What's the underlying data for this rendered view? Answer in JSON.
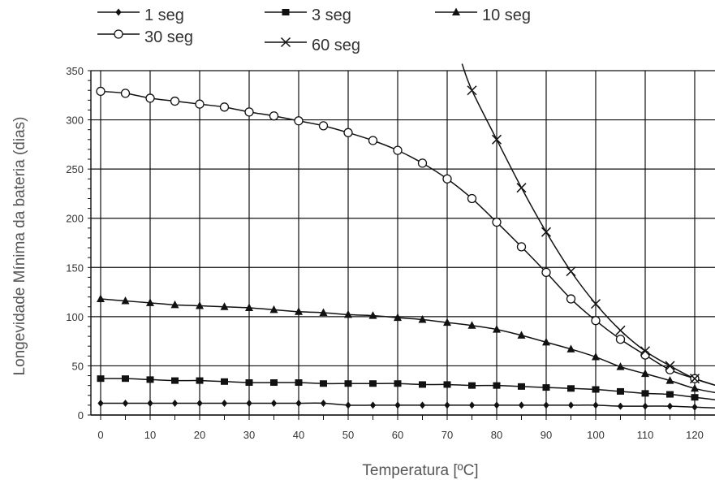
{
  "chart_data": {
    "type": "line",
    "title": "",
    "xlabel": "Temperatura [ºC]",
    "ylabel": "Longevidade Mínima da bateria (dias)",
    "xlim": [
      0,
      125
    ],
    "ylim": [
      0,
      350
    ],
    "x_ticks": [
      0,
      10,
      20,
      30,
      40,
      50,
      60,
      70,
      80,
      90,
      100,
      110,
      120
    ],
    "y_ticks": [
      0,
      50,
      100,
      150,
      200,
      250,
      300,
      350
    ],
    "grid": true,
    "legend_position": "top",
    "series": [
      {
        "name": "1 seg",
        "marker": "diamond",
        "x": [
          0,
          5,
          10,
          15,
          20,
          25,
          30,
          35,
          40,
          45,
          50,
          55,
          60,
          65,
          70,
          75,
          80,
          85,
          90,
          95,
          100,
          105,
          110,
          115,
          120
        ],
        "y": [
          12,
          12,
          12,
          12,
          12,
          12,
          12,
          12,
          12,
          12,
          10,
          10,
          10,
          10,
          10,
          10,
          10,
          10,
          10,
          10,
          10,
          9,
          9,
          9,
          8
        ],
        "line_extends_to": [
          125,
          7
        ]
      },
      {
        "name": "3 seg",
        "marker": "square",
        "x": [
          0,
          5,
          10,
          15,
          20,
          25,
          30,
          35,
          40,
          45,
          50,
          55,
          60,
          65,
          70,
          75,
          80,
          85,
          90,
          95,
          100,
          105,
          110,
          115,
          120
        ],
        "y": [
          37,
          37,
          36,
          35,
          35,
          34,
          33,
          33,
          33,
          32,
          32,
          32,
          32,
          31,
          31,
          30,
          30,
          29,
          28,
          27,
          26,
          24,
          22,
          21,
          18
        ],
        "line_extends_to": [
          125,
          15
        ]
      },
      {
        "name": "10 seg",
        "marker": "triangle",
        "x": [
          0,
          5,
          10,
          15,
          20,
          25,
          30,
          35,
          40,
          45,
          50,
          55,
          60,
          65,
          70,
          75,
          80,
          85,
          90,
          95,
          100,
          105,
          110,
          115,
          120
        ],
        "y": [
          118,
          116,
          114,
          112,
          111,
          110,
          109,
          107,
          105,
          104,
          102,
          101,
          99,
          97,
          94,
          91,
          87,
          81,
          74,
          67,
          59,
          49,
          42,
          35,
          27
        ],
        "line_extends_to": [
          125,
          22
        ]
      },
      {
        "name": "30 seg",
        "marker": "circle",
        "x": [
          0,
          5,
          10,
          15,
          20,
          25,
          30,
          35,
          40,
          45,
          50,
          55,
          60,
          65,
          70,
          75,
          80,
          85,
          90,
          95,
          100,
          105,
          110,
          115,
          120
        ],
        "y": [
          329,
          327,
          322,
          319,
          316,
          313,
          308,
          304,
          299,
          294,
          287,
          279,
          269,
          256,
          240,
          220,
          196,
          171,
          145,
          118,
          96,
          77,
          61,
          46,
          37
        ],
        "line_extends_to": [
          125,
          29
        ]
      },
      {
        "name": "60 seg",
        "marker": "x",
        "x": [
          75,
          80,
          85,
          90,
          95,
          100,
          105,
          110,
          115,
          120
        ],
        "y": [
          330,
          280,
          231,
          186,
          146,
          113,
          86,
          65,
          50,
          37
        ],
        "line_extends_from": [
          73,
          357
        ],
        "line_extends_to": [
          125,
          29
        ]
      }
    ]
  }
}
